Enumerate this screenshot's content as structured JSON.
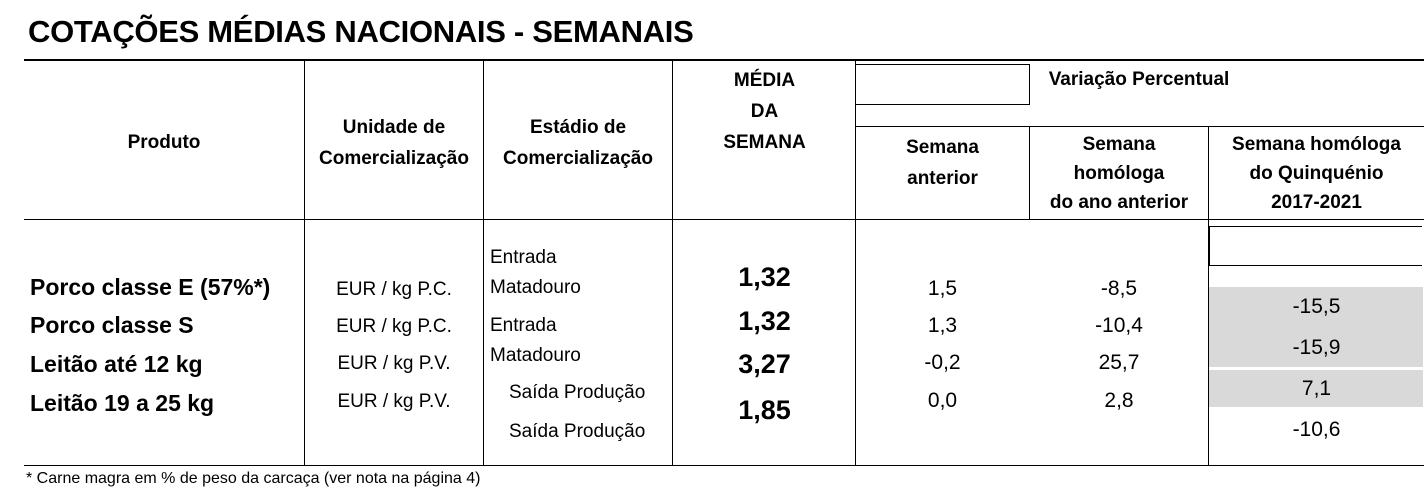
{
  "title": "COTAÇÕES MÉDIAS NACIONAIS - SEMANAIS",
  "headers": {
    "produto": "Produto",
    "unidade": [
      "Unidade de",
      "Comercialização"
    ],
    "estadio": [
      "Estádio de",
      "Comercialização"
    ],
    "media": [
      "MÉDIA",
      "DA",
      "SEMANA"
    ],
    "variacao": "Variação Percentual",
    "semana_anterior": [
      "Semana",
      "anterior"
    ],
    "semana_homologa": [
      "Semana",
      "homóloga",
      "do ano anterior"
    ],
    "quinquenio": [
      "Semana homóloga",
      "do Quinquénio",
      "2017-2021"
    ]
  },
  "rows": [
    {
      "produto": "Porco classe E (57%*)",
      "unidade": "EUR / kg P.C.",
      "media": "1,32",
      "semana_anterior": "1,5",
      "ano_anterior": "-8,5",
      "quinquenio": "-15,5"
    },
    {
      "produto": "Porco classe S",
      "unidade": "EUR / kg P.C.",
      "media": "1,32",
      "semana_anterior": "1,3",
      "ano_anterior": "-10,4",
      "quinquenio": "-15,9"
    },
    {
      "produto": "Leitão até 12 kg",
      "unidade": "EUR / kg P.V.",
      "media": "3,27",
      "semana_anterior": "-0,2",
      "ano_anterior": "25,7",
      "quinquenio": "7,1"
    },
    {
      "produto": "Leitão 19 a 25 kg",
      "unidade": "EUR / kg P.V.",
      "media": "1,85",
      "semana_anterior": "0,0",
      "ano_anterior": "2,8",
      "quinquenio": "-10,6"
    }
  ],
  "estadio_labels": [
    "Entrada",
    "Matadouro",
    "Entrada",
    "Matadouro",
    "Saída Produção",
    "Saída Produção"
  ],
  "footnote": "* Carne magra em % de peso da carcaça (ver nota na página 4)",
  "colors": {
    "shade": "#d9d9d9",
    "text": "#000000"
  }
}
